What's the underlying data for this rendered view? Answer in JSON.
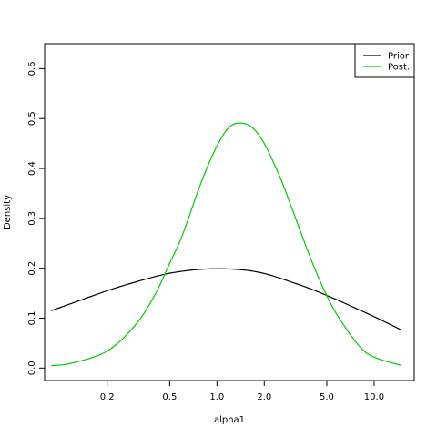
{
  "chart_data": {
    "type": "line",
    "title": "",
    "xlabel": "alpha1",
    "ylabel": "Density",
    "x_scale": "log",
    "xlim": [
      0.08,
      18
    ],
    "ylim": [
      -0.025,
      0.65
    ],
    "x_ticks": [
      0.2,
      0.5,
      1.0,
      2.0,
      5.0,
      10.0
    ],
    "x_tick_labels": [
      "0.2",
      "0.5",
      "1.0",
      "2.0",
      "5.0",
      "10.0"
    ],
    "y_ticks": [
      0.0,
      0.1,
      0.2,
      0.3,
      0.4,
      0.5,
      0.6
    ],
    "y_tick_labels": [
      "0.0",
      "0.1",
      "0.2",
      "0.3",
      "0.4",
      "0.5",
      "0.6"
    ],
    "grid": false,
    "legend_position": "top-right",
    "series": [
      {
        "name": "Prior",
        "color": "#000000",
        "x": [
          0.088,
          0.12,
          0.2,
          0.3,
          0.45,
          0.6,
          0.8,
          1.0,
          1.3,
          1.7,
          2.2,
          3.0,
          4.0,
          5.5,
          7.5,
          10.0,
          15.0
        ],
        "y": [
          0.115,
          0.13,
          0.155,
          0.172,
          0.187,
          0.194,
          0.198,
          0.199,
          0.198,
          0.194,
          0.186,
          0.172,
          0.158,
          0.14,
          0.121,
          0.103,
          0.076
        ]
      },
      {
        "name": "Post.",
        "color": "#00cc00",
        "x": [
          0.088,
          0.12,
          0.2,
          0.3,
          0.4,
          0.5,
          0.6,
          0.8,
          1.0,
          1.2,
          1.44,
          1.7,
          2.0,
          2.5,
          3.0,
          4.0,
          5.0,
          6.0,
          8.0,
          10.0,
          15.0
        ],
        "y": [
          0.005,
          0.01,
          0.034,
          0.085,
          0.145,
          0.21,
          0.265,
          0.375,
          0.445,
          0.483,
          0.491,
          0.48,
          0.45,
          0.385,
          0.32,
          0.215,
          0.145,
          0.1,
          0.045,
          0.022,
          0.005
        ]
      }
    ]
  }
}
